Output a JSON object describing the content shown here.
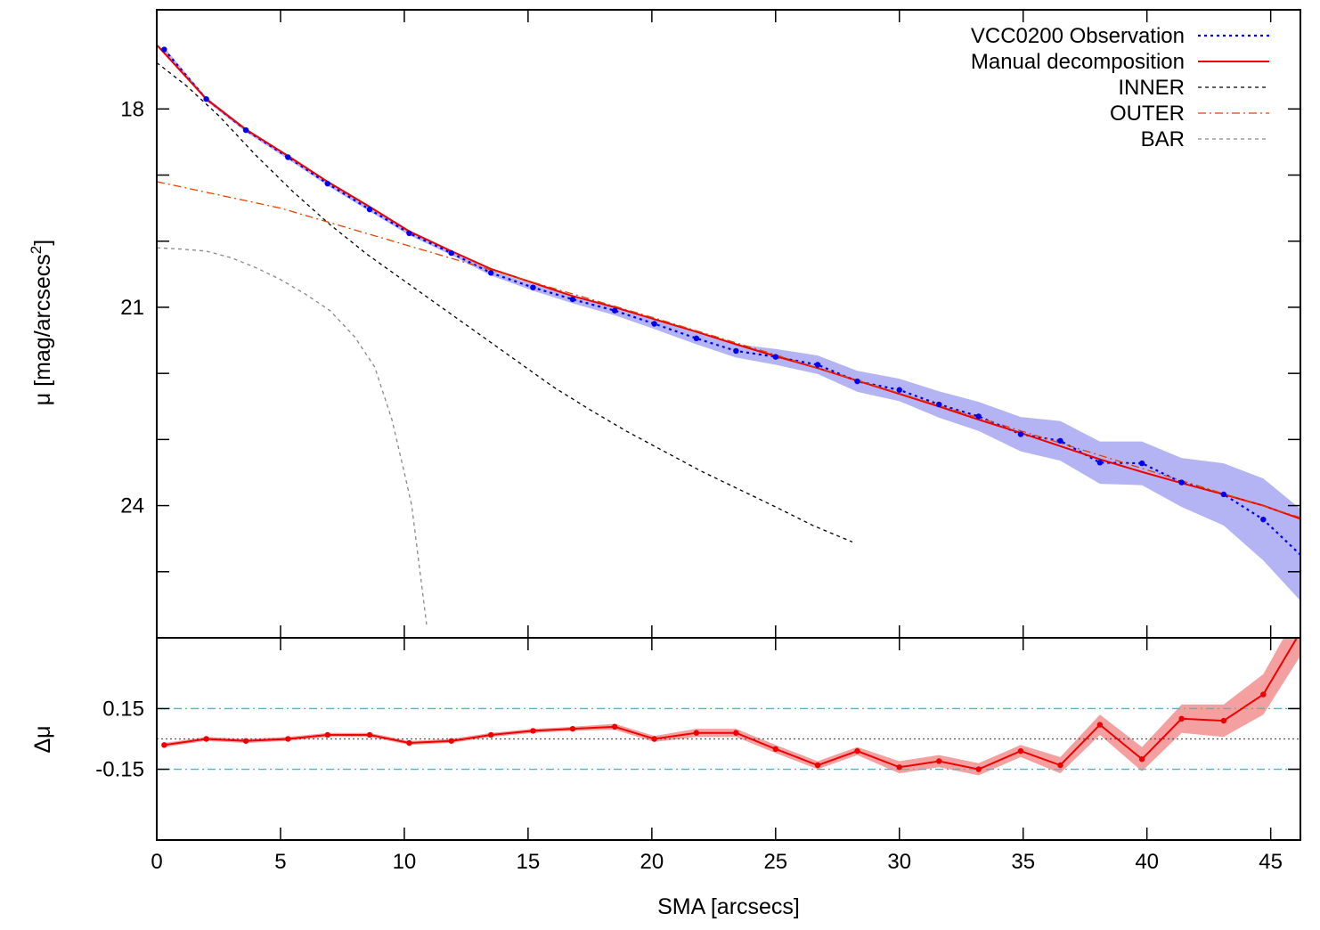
{
  "chart_data": [
    {
      "type": "line",
      "panel": "main",
      "xlabel": "SMA [arcsecs]",
      "ylabel": "μ [mag/arcsecs",
      "ylabel_sup": "2",
      "ylabel_close": "]",
      "xlim": [
        0,
        46.2
      ],
      "ylim": [
        26.0,
        16.5
      ],
      "y_reversed": true,
      "x_ticks": [
        0,
        5,
        10,
        15,
        20,
        25,
        30,
        35,
        40,
        45
      ],
      "y_ticks": [
        18,
        21,
        24
      ],
      "y_minor_ticks": [
        19,
        20,
        22,
        23,
        25
      ],
      "x_tick_labels": [
        "0",
        "5",
        "10",
        "15",
        "20",
        "25",
        "30",
        "35",
        "40",
        "45"
      ],
      "y_tick_labels": [
        "18",
        "21",
        "24"
      ],
      "legend_position": "top-right",
      "series": [
        {
          "name": "VCC0200 Observation",
          "color": "#0000ee",
          "style": "dotted-with-points",
          "x": [
            0.3,
            2.0,
            3.6,
            5.3,
            6.9,
            8.6,
            10.2,
            11.9,
            13.5,
            15.2,
            16.8,
            18.5,
            20.1,
            21.8,
            23.4,
            25.0,
            26.7,
            28.3,
            30.0,
            31.6,
            33.2,
            34.9,
            36.5,
            38.1,
            39.8,
            41.4,
            43.1,
            44.7,
            46.3
          ],
          "y": [
            17.1,
            17.85,
            18.32,
            18.73,
            19.13,
            19.52,
            19.88,
            20.18,
            20.48,
            20.7,
            20.88,
            21.05,
            21.25,
            21.47,
            21.66,
            21.75,
            21.87,
            22.12,
            22.25,
            22.47,
            22.65,
            22.92,
            23.02,
            23.35,
            23.36,
            23.65,
            23.83,
            24.21,
            24.78
          ],
          "y_err": [
            0.03,
            0.03,
            0.03,
            0.03,
            0.03,
            0.03,
            0.03,
            0.03,
            0.04,
            0.05,
            0.06,
            0.07,
            0.08,
            0.09,
            0.1,
            0.12,
            0.14,
            0.16,
            0.17,
            0.2,
            0.22,
            0.26,
            0.3,
            0.32,
            0.33,
            0.37,
            0.47,
            0.62,
            0.7
          ]
        },
        {
          "name": "Manual decomposition",
          "color": "#ee0000",
          "style": "solid",
          "x": [
            0,
            2.0,
            3.6,
            5.3,
            6.9,
            8.6,
            10.2,
            11.9,
            13.5,
            15.2,
            16.8,
            18.5,
            20.1,
            21.8,
            23.4,
            25.0,
            26.7,
            28.3,
            30.0,
            31.6,
            33.2,
            34.9,
            36.5,
            38.1,
            39.8,
            41.4,
            43.1,
            44.7,
            46.2
          ],
          "y": [
            17.03,
            17.85,
            18.31,
            18.71,
            19.1,
            19.48,
            19.85,
            20.15,
            20.42,
            20.63,
            20.83,
            21.0,
            21.18,
            21.37,
            21.56,
            21.74,
            21.92,
            22.11,
            22.31,
            22.5,
            22.7,
            22.9,
            23.1,
            23.3,
            23.49,
            23.66,
            23.83,
            24.0,
            24.2
          ]
        },
        {
          "name": "INNER",
          "color": "#000000",
          "style": "dashed",
          "x": [
            0,
            1.2,
            2.5,
            4.0,
            5.5,
            7.0,
            8.5,
            10.0,
            11.5,
            13.0,
            14.5,
            16.0,
            17.5,
            19.0,
            20.5,
            22.0,
            23.5,
            25.0,
            26.5,
            28.1
          ],
          "y": [
            17.3,
            17.65,
            18.1,
            18.7,
            19.25,
            19.75,
            20.2,
            20.6,
            21.0,
            21.4,
            21.8,
            22.2,
            22.55,
            22.88,
            23.18,
            23.48,
            23.75,
            24.02,
            24.3,
            24.55
          ]
        },
        {
          "name": "OUTER",
          "color": "#dd4400",
          "style": "dash-dot",
          "x": [
            0,
            5,
            10,
            15,
            20,
            25,
            30,
            35,
            40,
            46.2
          ],
          "y": [
            19.1,
            19.5,
            20.05,
            20.6,
            21.15,
            21.72,
            22.3,
            22.88,
            23.46,
            24.18
          ]
        },
        {
          "name": "BAR",
          "color": "#888888",
          "style": "dashed",
          "x": [
            0,
            1,
            2,
            3,
            4,
            5,
            6,
            7,
            8,
            8.8,
            9.5,
            10.0,
            10.3,
            10.5,
            10.7,
            10.9
          ],
          "y": [
            20.1,
            20.12,
            20.15,
            20.25,
            20.4,
            20.58,
            20.8,
            21.05,
            21.45,
            21.9,
            22.7,
            23.5,
            24.0,
            24.6,
            25.2,
            25.8
          ]
        }
      ]
    },
    {
      "type": "line",
      "panel": "residual",
      "xlabel": "SMA [arcsecs]",
      "ylabel": "Δμ",
      "xlim": [
        0,
        46.2
      ],
      "ylim": [
        -0.5,
        0.5
      ],
      "y_ticks": [
        0.15,
        -0.15
      ],
      "y_tick_labels": [
        "0.15",
        "-0.15"
      ],
      "reference_lines": [
        {
          "y": 0.15,
          "color": "#22cccc",
          "style": "dash-dot"
        },
        {
          "y": -0.15,
          "color": "#22cccc",
          "style": "dash-dot"
        },
        {
          "y": 0.0,
          "color": "#555555",
          "style": "dotted"
        }
      ],
      "series": [
        {
          "color": "#ee0000",
          "band_color": "#f4a0a0",
          "x": [
            0.3,
            2.0,
            3.6,
            5.3,
            6.9,
            8.6,
            10.2,
            11.9,
            13.5,
            15.2,
            16.8,
            18.5,
            20.1,
            21.8,
            23.4,
            25.0,
            26.7,
            28.3,
            30.0,
            31.6,
            33.2,
            34.9,
            36.5,
            38.1,
            39.8,
            41.4,
            43.1,
            44.7,
            46.3
          ],
          "y": [
            -0.03,
            0.0,
            -0.01,
            0.0,
            0.02,
            0.02,
            -0.02,
            -0.01,
            0.02,
            0.04,
            0.05,
            0.06,
            0.0,
            0.03,
            0.03,
            -0.05,
            -0.13,
            -0.06,
            -0.14,
            -0.11,
            -0.15,
            -0.06,
            -0.13,
            0.07,
            -0.1,
            0.1,
            0.09,
            0.22,
            0.55
          ],
          "y_err": [
            0.01,
            0.01,
            0.01,
            0.01,
            0.01,
            0.01,
            0.01,
            0.01,
            0.01,
            0.01,
            0.01,
            0.015,
            0.015,
            0.02,
            0.02,
            0.02,
            0.02,
            0.02,
            0.03,
            0.03,
            0.03,
            0.03,
            0.04,
            0.05,
            0.06,
            0.07,
            0.08,
            0.1,
            0.12
          ]
        }
      ]
    }
  ]
}
